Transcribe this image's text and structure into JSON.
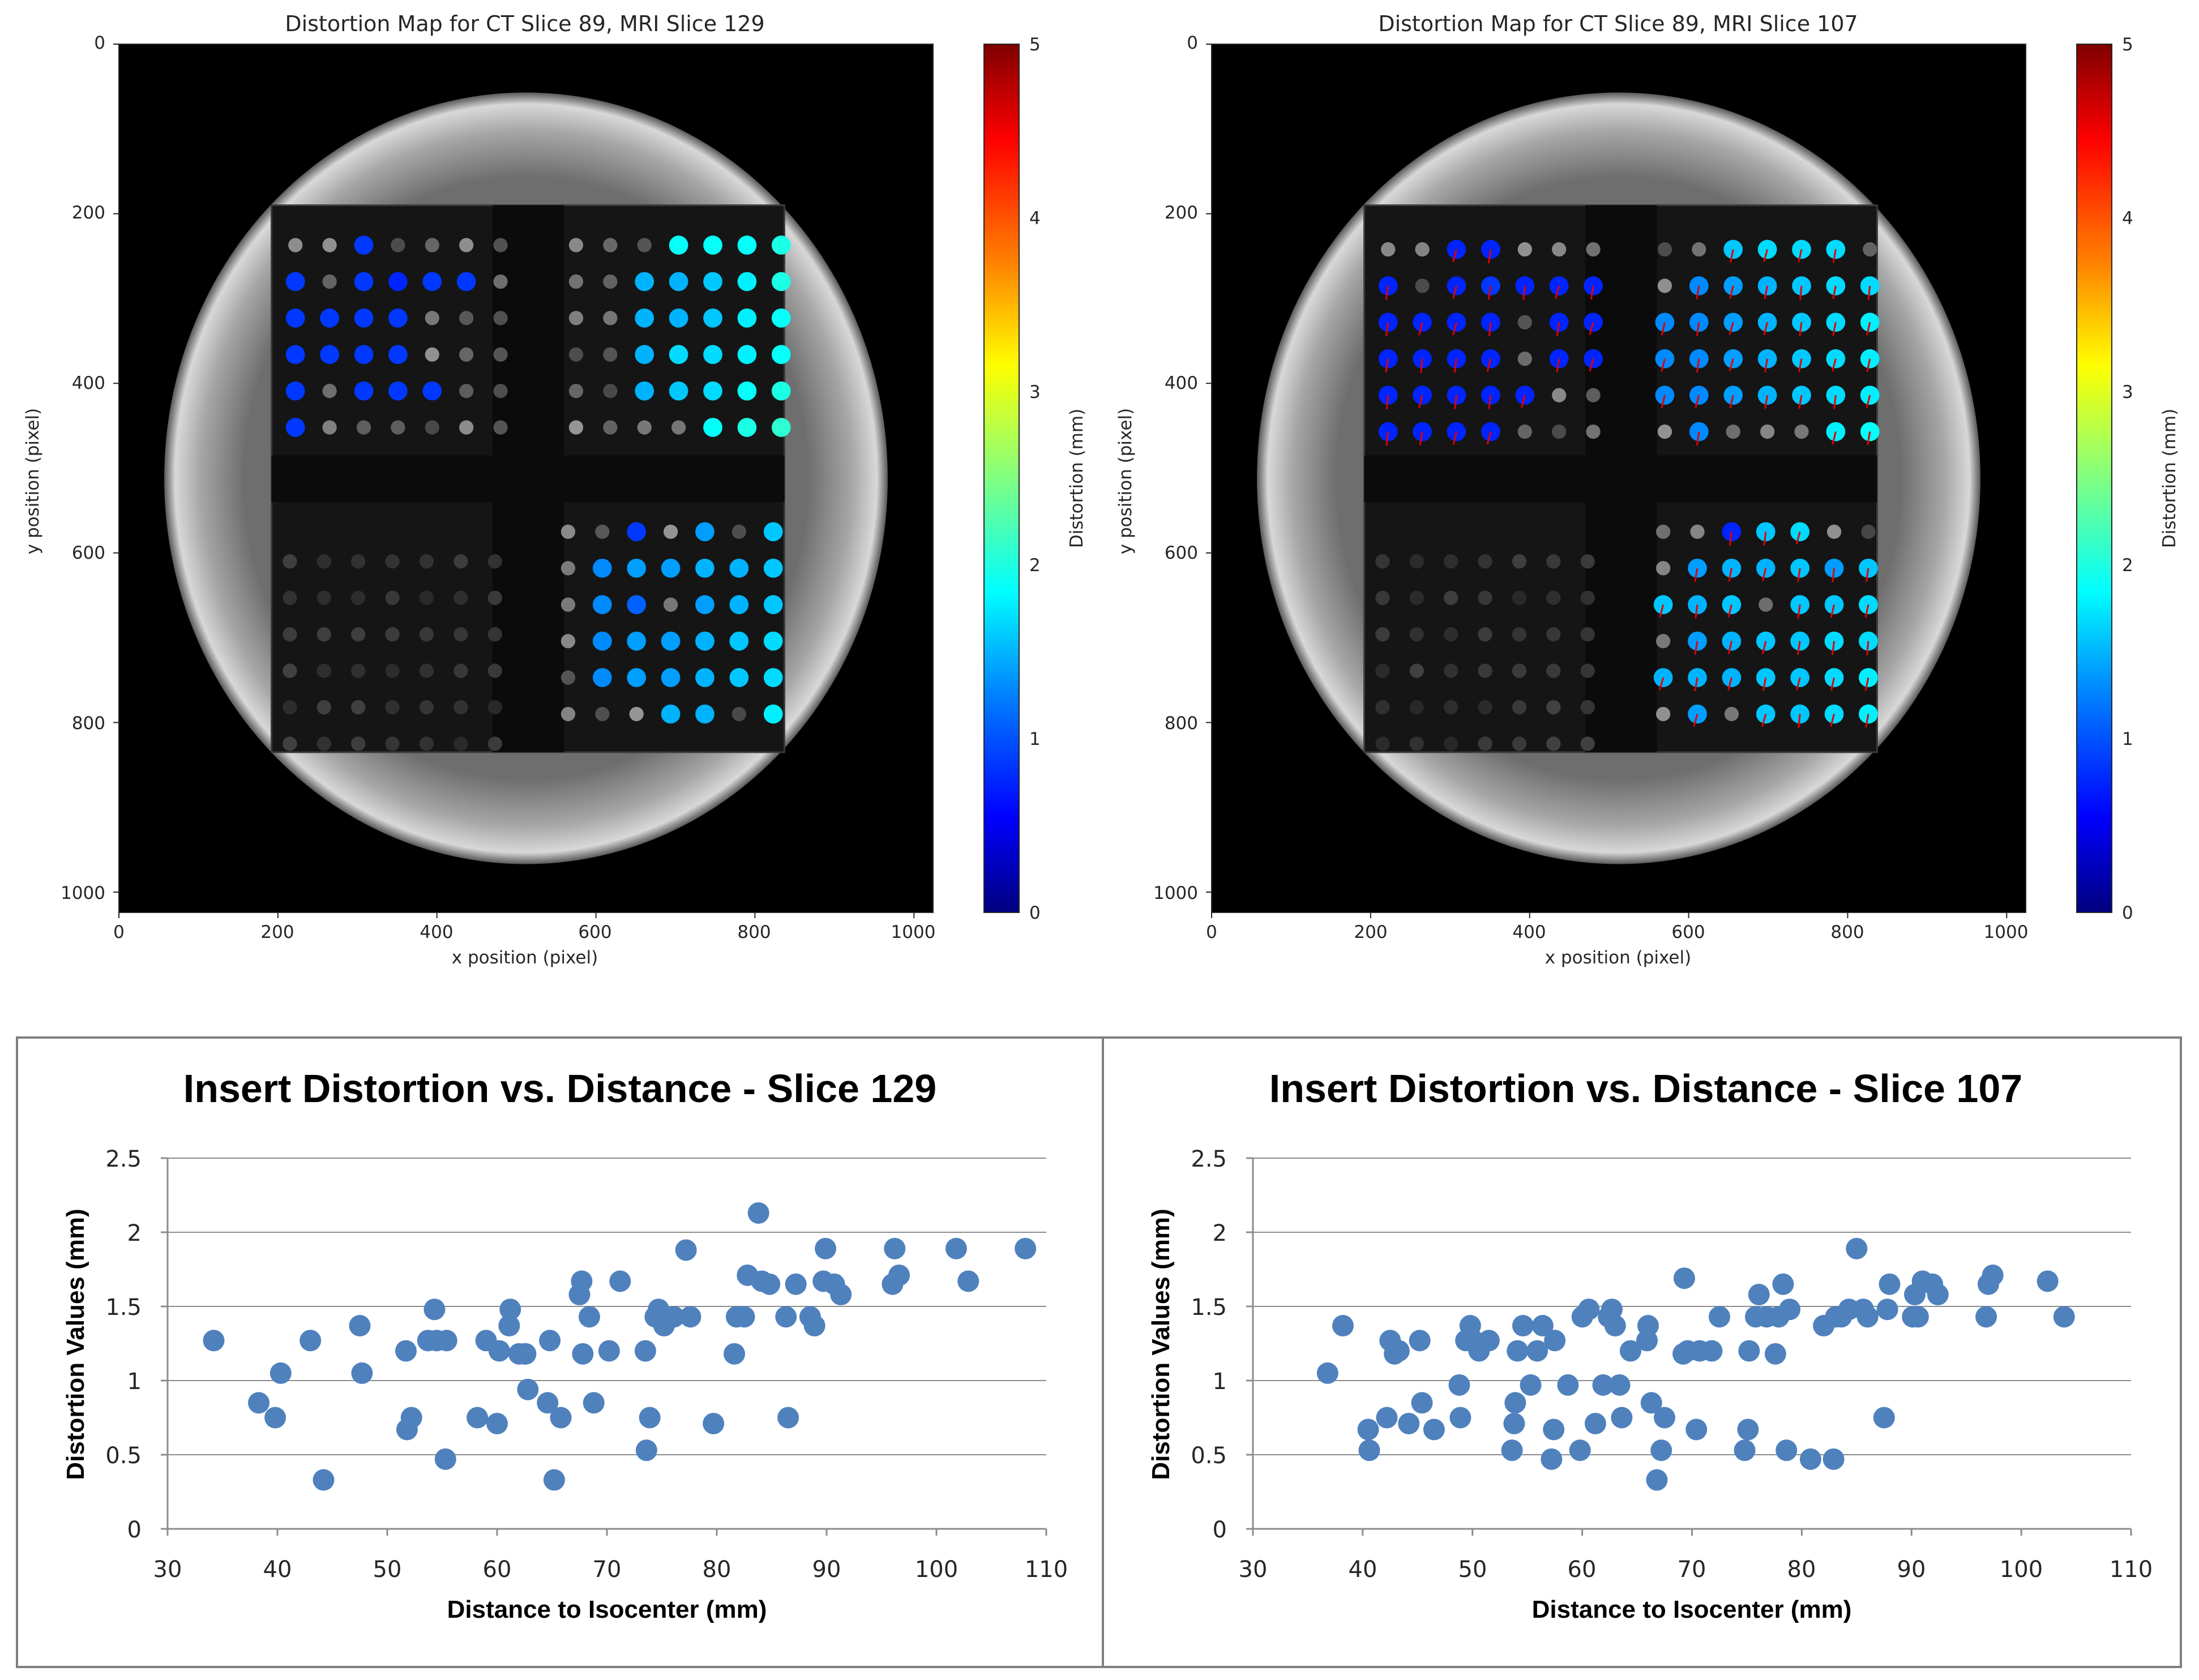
{
  "colormap": {
    "stops": [
      "#00007f",
      "#0000ff",
      "#0080ff",
      "#00ffff",
      "#80ff80",
      "#ffff00",
      "#ff8000",
      "#ff0000",
      "#7f0000"
    ],
    "background": "#000000",
    "vector_color": "#e00000",
    "ring_color": "#b8b8b8"
  },
  "maps": [
    {
      "title": "Distortion Map for CT Slice 89, MRI Slice 129",
      "xlabel": "x position (pixel)",
      "ylabel": "y position (pixel)",
      "xlim": [
        0,
        1024
      ],
      "ylim": [
        0,
        1024
      ],
      "xticks": [
        "0",
        "200",
        "400",
        "600",
        "800",
        "1000"
      ],
      "yticks": [
        "0",
        "200",
        "400",
        "600",
        "800",
        "1000"
      ],
      "colorbar": {
        "label": "Distortion (mm)",
        "range": [
          0,
          5
        ],
        "ticks": [
          "0",
          "1",
          "2",
          "3",
          "4",
          "5"
        ]
      },
      "show_vectors": false,
      "quadrants": [
        {
          "name": "upper-left",
          "x0": 222,
          "y0": 237,
          "dx": 43,
          "dy": 43,
          "cols": 7,
          "rows": 6,
          "values": [
            [
              null,
              null,
              0.9,
              null,
              null,
              null,
              null
            ],
            [
              0.9,
              null,
              0.9,
              0.8,
              0.9,
              0.9,
              null
            ],
            [
              0.9,
              0.9,
              0.9,
              0.9,
              null,
              null,
              null
            ],
            [
              0.9,
              0.9,
              0.9,
              0.9,
              null,
              null,
              null
            ],
            [
              0.9,
              null,
              0.9,
              0.9,
              0.9,
              null,
              null
            ],
            [
              0.9,
              null,
              null,
              null,
              null,
              null,
              null
            ]
          ]
        },
        {
          "name": "upper-right",
          "x0": 575,
          "y0": 237,
          "dx": 43,
          "dy": 43,
          "cols": 7,
          "rows": 6,
          "values": [
            [
              null,
              null,
              null,
              1.9,
              1.9,
              1.9,
              2.0
            ],
            [
              null,
              null,
              1.5,
              1.5,
              1.6,
              1.8,
              2.0
            ],
            [
              null,
              null,
              1.5,
              1.5,
              1.6,
              1.8,
              1.9
            ],
            [
              null,
              null,
              1.5,
              1.7,
              1.7,
              1.8,
              1.9
            ],
            [
              null,
              null,
              1.5,
              1.6,
              1.7,
              1.9,
              2.0
            ],
            [
              null,
              null,
              null,
              null,
              1.9,
              2.0,
              2.1
            ]
          ]
        },
        {
          "name": "lower-left",
          "x0": 215,
          "y0": 610,
          "dx": 43,
          "dy": 43,
          "cols": 7,
          "rows": 6,
          "values": [
            [
              null,
              null,
              null,
              null,
              null,
              null,
              null
            ],
            [
              null,
              null,
              null,
              null,
              null,
              null,
              null
            ],
            [
              null,
              null,
              null,
              null,
              null,
              null,
              null
            ],
            [
              null,
              null,
              null,
              null,
              null,
              null,
              null
            ],
            [
              null,
              null,
              null,
              null,
              null,
              null,
              null
            ],
            [
              null,
              null,
              null,
              null,
              null,
              null,
              null
            ]
          ]
        },
        {
          "name": "lower-right",
          "x0": 565,
          "y0": 575,
          "dx": 43,
          "dy": 43,
          "cols": 7,
          "rows": 6,
          "values": [
            [
              null,
              null,
              0.9,
              null,
              1.4,
              null,
              1.6
            ],
            [
              null,
              1.3,
              1.4,
              1.4,
              1.5,
              1.5,
              1.6
            ],
            [
              null,
              1.3,
              1.1,
              null,
              1.4,
              1.5,
              1.6
            ],
            [
              null,
              1.3,
              1.4,
              1.4,
              1.5,
              1.6,
              1.7
            ],
            [
              null,
              1.3,
              1.4,
              1.4,
              1.5,
              1.6,
              1.7
            ],
            [
              null,
              null,
              null,
              1.5,
              1.5,
              null,
              1.8
            ]
          ]
        }
      ]
    },
    {
      "title": "Distortion Map for CT Slice 89, MRI Slice 107",
      "xlabel": "x position (pixel)",
      "ylabel": "y position (pixel)",
      "xlim": [
        0,
        1024
      ],
      "ylim": [
        0,
        1024
      ],
      "xticks": [
        "0",
        "200",
        "400",
        "600",
        "800",
        "1000"
      ],
      "yticks": [
        "0",
        "200",
        "400",
        "600",
        "800",
        "1000"
      ],
      "colorbar": {
        "label": "Distortion (mm)",
        "range": [
          0,
          5
        ],
        "ticks": [
          "0",
          "1",
          "2",
          "3",
          "4",
          "5"
        ]
      },
      "show_vectors": true,
      "quadrants": [
        {
          "name": "upper-left",
          "x0": 222,
          "y0": 242,
          "dx": 43,
          "dy": 43,
          "cols": 7,
          "rows": 6,
          "values": [
            [
              null,
              null,
              0.8,
              0.8,
              null,
              null,
              null
            ],
            [
              0.8,
              null,
              0.8,
              0.9,
              0.8,
              0.8,
              0.8
            ],
            [
              0.8,
              0.8,
              0.8,
              0.8,
              null,
              0.8,
              0.8
            ],
            [
              0.8,
              0.8,
              0.8,
              0.8,
              null,
              0.8,
              0.8
            ],
            [
              0.8,
              0.8,
              0.8,
              0.8,
              0.8,
              null,
              null
            ],
            [
              0.8,
              0.8,
              0.8,
              0.8,
              null,
              null,
              null
            ]
          ]
        },
        {
          "name": "upper-right",
          "x0": 570,
          "y0": 242,
          "dx": 43,
          "dy": 43,
          "cols": 7,
          "rows": 6,
          "values": [
            [
              null,
              null,
              1.6,
              1.7,
              1.7,
              1.7,
              null
            ],
            [
              null,
              1.3,
              1.4,
              1.5,
              1.6,
              1.7,
              1.7
            ],
            [
              1.3,
              1.3,
              1.4,
              1.5,
              1.6,
              1.7,
              1.8
            ],
            [
              1.3,
              1.3,
              1.4,
              1.5,
              1.6,
              1.7,
              1.8
            ],
            [
              1.3,
              1.3,
              1.4,
              1.5,
              1.6,
              1.7,
              1.8
            ],
            [
              null,
              1.3,
              null,
              null,
              null,
              1.8,
              1.9
            ]
          ]
        },
        {
          "name": "lower-left",
          "x0": 215,
          "y0": 610,
          "dx": 43,
          "dy": 43,
          "cols": 7,
          "rows": 6,
          "values": [
            [
              null,
              null,
              null,
              null,
              null,
              null,
              null
            ],
            [
              null,
              null,
              null,
              null,
              null,
              null,
              null
            ],
            [
              null,
              null,
              null,
              null,
              null,
              null,
              null
            ],
            [
              null,
              null,
              null,
              null,
              null,
              null,
              null
            ],
            [
              null,
              null,
              null,
              null,
              null,
              null,
              null
            ],
            [
              null,
              null,
              null,
              null,
              null,
              null,
              null
            ]
          ]
        },
        {
          "name": "lower-right",
          "x0": 568,
          "y0": 575,
          "dx": 43,
          "dy": 43,
          "cols": 7,
          "rows": 6,
          "values": [
            [
              null,
              null,
              0.8,
              1.6,
              1.7,
              null,
              null
            ],
            [
              null,
              1.4,
              1.5,
              1.5,
              1.6,
              1.4,
              1.6
            ],
            [
              1.6,
              1.5,
              1.6,
              null,
              1.6,
              1.6,
              1.7
            ],
            [
              null,
              1.4,
              1.5,
              1.6,
              1.6,
              1.7,
              1.7
            ],
            [
              1.5,
              1.5,
              1.5,
              1.6,
              1.6,
              1.7,
              1.8
            ],
            [
              null,
              1.4,
              null,
              1.6,
              1.6,
              1.7,
              1.8
            ]
          ]
        }
      ]
    }
  ],
  "chart_data": [
    {
      "type": "scatter",
      "title": "Insert Distortion vs. Distance - Slice 129",
      "xlabel": "Distance to Isocenter (mm)",
      "ylabel": "Distortion Values (mm)",
      "xlim": [
        30,
        110
      ],
      "ylim": [
        0,
        2.5
      ],
      "xticks": [
        "30",
        "40",
        "50",
        "60",
        "70",
        "80",
        "90",
        "100",
        "110"
      ],
      "yticks": [
        "0",
        "0.5",
        "1",
        "1.5",
        "2",
        "2.5"
      ],
      "grid": true,
      "legend": "none",
      "color": "#4f81bd",
      "x": [
        34.2,
        38.3,
        39.8,
        40.3,
        43.0,
        44.2,
        47.5,
        47.7,
        51.7,
        51.8,
        52.2,
        53.7,
        54.3,
        54.5,
        55.3,
        55.4,
        58.2,
        59.0,
        60.0,
        60.2,
        61.1,
        61.2,
        62.0,
        62.5,
        62.6,
        62.8,
        64.6,
        64.8,
        65.2,
        65.8,
        67.5,
        67.7,
        67.8,
        68.4,
        68.8,
        70.2,
        71.2,
        73.5,
        73.6,
        73.9,
        74.4,
        74.7,
        74.8,
        75.2,
        75.4,
        76.1,
        77.2,
        77.6,
        79.7,
        81.6,
        81.8,
        82.5,
        82.8,
        83.8,
        84.1,
        84.8,
        86.3,
        86.5,
        87.2,
        88.5,
        88.9,
        89.7,
        89.9,
        90.7,
        91.3,
        96.0,
        96.2,
        96.6,
        101.8,
        102.9,
        108.1
      ],
      "y": [
        1.27,
        0.85,
        0.75,
        1.05,
        1.27,
        0.33,
        1.37,
        1.05,
        1.2,
        0.67,
        0.75,
        1.27,
        1.48,
        1.27,
        0.47,
        1.27,
        0.75,
        1.27,
        0.71,
        1.2,
        1.37,
        1.48,
        1.18,
        1.18,
        1.18,
        0.94,
        0.85,
        1.27,
        0.33,
        0.75,
        1.58,
        1.67,
        1.18,
        1.43,
        0.85,
        1.2,
        1.67,
        1.2,
        0.53,
        0.75,
        1.43,
        1.48,
        1.43,
        1.37,
        1.4,
        1.43,
        1.88,
        1.43,
        0.71,
        1.18,
        1.43,
        1.43,
        1.71,
        2.13,
        1.67,
        1.65,
        1.43,
        0.75,
        1.65,
        1.43,
        1.37,
        1.67,
        1.89,
        1.65,
        1.58,
        1.65,
        1.89,
        1.71,
        1.89,
        1.67,
        1.89
      ]
    },
    {
      "type": "scatter",
      "title": "Insert Distortion vs. Distance - Slice 107",
      "xlabel": "Distance to Isocenter (mm)",
      "ylabel": "Distortion Values (mm)",
      "xlim": [
        30,
        110
      ],
      "ylim": [
        0,
        2.5
      ],
      "xticks": [
        "30",
        "40",
        "50",
        "60",
        "70",
        "80",
        "90",
        "100",
        "110"
      ],
      "yticks": [
        "0",
        "0.5",
        "1",
        "1.5",
        "2",
        "2.5"
      ],
      "grid": true,
      "legend": "none",
      "color": "#4f81bd",
      "x": [
        36.8,
        38.2,
        40.5,
        40.6,
        42.2,
        42.5,
        42.9,
        43.3,
        44.2,
        45.2,
        45.4,
        46.5,
        48.8,
        48.9,
        49.4,
        49.8,
        50.1,
        50.6,
        51.5,
        53.6,
        53.8,
        53.9,
        54.1,
        54.6,
        55.3,
        55.9,
        56.4,
        57.2,
        57.4,
        57.5,
        58.7,
        59.8,
        60.0,
        60.6,
        61.2,
        61.9,
        62.4,
        62.7,
        63.0,
        63.4,
        63.6,
        64.4,
        65.9,
        66.0,
        66.3,
        66.8,
        67.2,
        67.5,
        69.2,
        69.3,
        69.6,
        70.4,
        70.7,
        71.8,
        72.5,
        74.8,
        75.1,
        75.2,
        75.8,
        76.1,
        76.8,
        77.6,
        77.9,
        78.3,
        78.6,
        78.9,
        80.8,
        82.0,
        82.9,
        83.1,
        83.6,
        84.3,
        85.0,
        85.6,
        86.0,
        87.5,
        87.8,
        88.0,
        90.1,
        90.3,
        90.6,
        91.0,
        91.9,
        92.4,
        96.8,
        97.0,
        97.4,
        102.4,
        103.9
      ],
      "y": [
        1.05,
        1.37,
        0.67,
        0.53,
        0.75,
        1.27,
        1.18,
        1.2,
        0.71,
        1.27,
        0.85,
        0.67,
        0.97,
        0.75,
        1.27,
        1.37,
        1.27,
        1.2,
        1.27,
        0.53,
        0.71,
        0.85,
        1.2,
        1.37,
        0.97,
        1.2,
        1.37,
        0.47,
        0.67,
        1.27,
        0.97,
        0.53,
        1.43,
        1.48,
        0.71,
        0.97,
        1.43,
        1.48,
        1.37,
        0.97,
        0.75,
        1.2,
        1.27,
        1.37,
        0.85,
        0.33,
        0.53,
        0.75,
        1.18,
        1.69,
        1.2,
        0.67,
        1.2,
        1.2,
        1.43,
        0.53,
        0.67,
        1.2,
        1.43,
        1.58,
        1.43,
        1.18,
        1.43,
        1.65,
        0.53,
        1.48,
        0.47,
        1.37,
        0.47,
        1.43,
        1.43,
        1.48,
        1.89,
        1.48,
        1.43,
        0.75,
        1.48,
        1.65,
        1.43,
        1.58,
        1.43,
        1.67,
        1.65,
        1.58,
        1.43,
        1.65,
        1.71,
        1.67,
        1.43
      ]
    }
  ]
}
